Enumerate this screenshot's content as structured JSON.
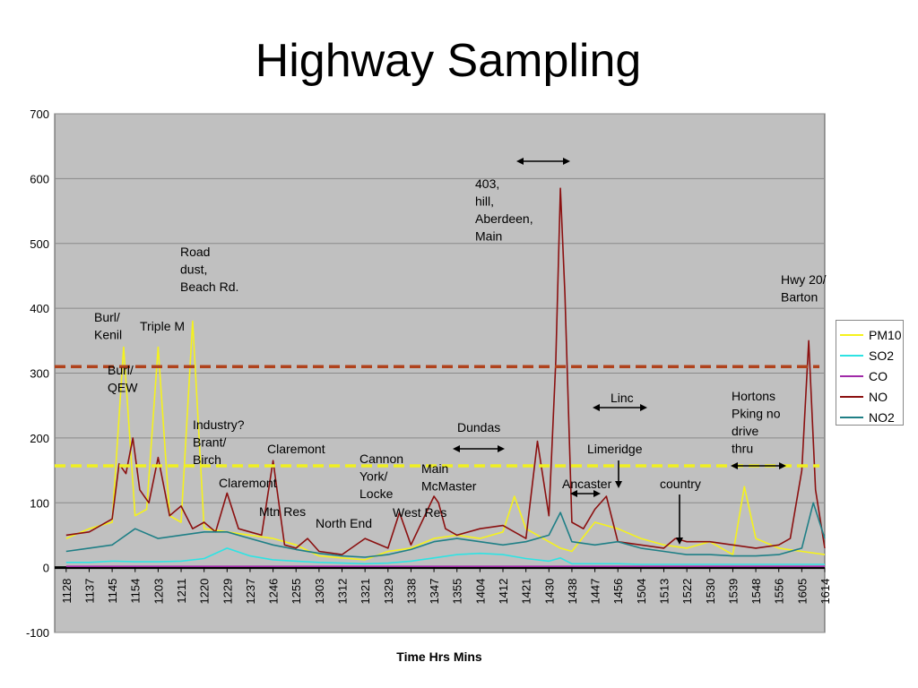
{
  "slide": {
    "title": "Highway Sampling"
  },
  "colors": {
    "PM10": "#f5f21c",
    "SO2": "#2ee3e3",
    "CO": "#a02aa8",
    "NO": "#8b1010",
    "NO2": "#1f7f86",
    "plot_bg": "#c0c0c0",
    "upper_threshold": "#b0421c",
    "lower_threshold": "#f0f020"
  },
  "chart_data": {
    "type": "line",
    "title": "",
    "xlabel": "Time Hrs Mins",
    "ylabel": "",
    "ylim": [
      -100,
      700
    ],
    "y_ticks": [
      -100,
      0,
      100,
      200,
      300,
      400,
      500,
      600,
      700
    ],
    "x_ticks": [
      "1128",
      "1137",
      "1145",
      "1154",
      "1203",
      "1211",
      "1220",
      "1229",
      "1237",
      "1246",
      "1255",
      "1303",
      "1312",
      "1321",
      "1329",
      "1338",
      "1347",
      "1355",
      "1404",
      "1412",
      "1421",
      "1430",
      "1438",
      "1447",
      "1456",
      "1504",
      "1513",
      "1522",
      "1530",
      "1539",
      "1548",
      "1556",
      "1605",
      "1614"
    ],
    "grid": "horizontal",
    "legend_position": "right",
    "reference_lines": [
      {
        "value": 310,
        "style": "dashed",
        "color": "#b0421c"
      },
      {
        "value": 157,
        "style": "dashed",
        "color": "#f0f020"
      }
    ],
    "series": [
      {
        "name": "PM10",
        "x": [
          0,
          1,
          2,
          2.5,
          3,
          3.5,
          4,
          4.5,
          5,
          5.5,
          6,
          7,
          8,
          9,
          10,
          11,
          12,
          13,
          14,
          15,
          16,
          17,
          18,
          19,
          19.5,
          20,
          21,
          21.5,
          22,
          23,
          24,
          25,
          26,
          27,
          28,
          29,
          29.5,
          30,
          31,
          32,
          33
        ],
        "values": [
          45,
          60,
          70,
          340,
          80,
          90,
          340,
          80,
          70,
          380,
          60,
          55,
          50,
          45,
          35,
          18,
          15,
          12,
          25,
          30,
          45,
          50,
          45,
          55,
          110,
          60,
          40,
          30,
          25,
          70,
          60,
          45,
          35,
          30,
          40,
          20,
          125,
          45,
          30,
          25,
          20
        ]
      },
      {
        "name": "SO2",
        "x": [
          0,
          1,
          2,
          3,
          4,
          5,
          6,
          7,
          8,
          9,
          10,
          11,
          12,
          13,
          14,
          15,
          16,
          17,
          18,
          19,
          20,
          21,
          21.5,
          22,
          23,
          24,
          25,
          26,
          27,
          28,
          29,
          30,
          31,
          32,
          33
        ],
        "values": [
          8,
          8,
          10,
          9,
          9,
          10,
          14,
          30,
          18,
          12,
          10,
          8,
          7,
          6,
          7,
          10,
          15,
          20,
          22,
          20,
          14,
          10,
          15,
          6,
          6,
          6,
          5,
          5,
          5,
          5,
          5,
          5,
          5,
          5,
          5
        ]
      },
      {
        "name": "CO",
        "x": [
          0,
          33
        ],
        "values": [
          2,
          2
        ]
      },
      {
        "name": "NO",
        "x": [
          0,
          1,
          2,
          2.3,
          2.6,
          2.9,
          3.2,
          3.6,
          4,
          4.5,
          5,
          5.5,
          6,
          6.5,
          7,
          7.5,
          8,
          8.5,
          9,
          9.5,
          10,
          10.5,
          11,
          12,
          13,
          14,
          14.5,
          15,
          16,
          16.2,
          16.5,
          17,
          18,
          19,
          20,
          20.5,
          21,
          21.3,
          21.5,
          21.7,
          22,
          22.5,
          23,
          23.5,
          24,
          25,
          26,
          26.5,
          27,
          28,
          29,
          30,
          31,
          31.5,
          32,
          32.3,
          32.6,
          33
        ],
        "values": [
          50,
          55,
          75,
          160,
          145,
          200,
          120,
          100,
          170,
          80,
          95,
          60,
          70,
          55,
          115,
          60,
          55,
          50,
          165,
          35,
          30,
          45,
          25,
          20,
          45,
          30,
          85,
          35,
          110,
          100,
          60,
          50,
          60,
          65,
          45,
          195,
          80,
          320,
          585,
          420,
          70,
          60,
          90,
          110,
          40,
          35,
          30,
          45,
          40,
          40,
          35,
          30,
          35,
          45,
          150,
          350,
          120,
          30
        ]
      },
      {
        "name": "NO2",
        "x": [
          0,
          1,
          2,
          3,
          4,
          5,
          6,
          7,
          8,
          9,
          10,
          11,
          12,
          13,
          14,
          15,
          16,
          17,
          18,
          19,
          20,
          21,
          21.5,
          22,
          23,
          24,
          25,
          26,
          27,
          28,
          29,
          30,
          31,
          32,
          32.5,
          33
        ],
        "values": [
          25,
          30,
          35,
          60,
          45,
          50,
          55,
          55,
          45,
          35,
          28,
          22,
          18,
          16,
          20,
          28,
          40,
          45,
          40,
          35,
          40,
          50,
          85,
          40,
          35,
          40,
          30,
          25,
          20,
          20,
          18,
          18,
          20,
          30,
          100,
          45
        ]
      }
    ],
    "annotations": [
      {
        "text": "403, hill, Aberdeen, Main",
        "arrow": true
      },
      {
        "text": "Road dust, Beach Rd."
      },
      {
        "text": "Burl/ Kenil"
      },
      {
        "text": "Triple M"
      },
      {
        "text": "Burl/ QEW"
      },
      {
        "text": "Hwy 20/ Barton"
      },
      {
        "text": "Linc",
        "arrow": true
      },
      {
        "text": "Hortons Pking no drive thru",
        "arrow": true
      },
      {
        "text": "Dundas",
        "arrow": true
      },
      {
        "text": "Industry? Brant/ Birch"
      },
      {
        "text": "Claremont"
      },
      {
        "text": "Claremont"
      },
      {
        "text": "Cannon York/ Locke"
      },
      {
        "text": "Main McMaster"
      },
      {
        "text": "Limeridge",
        "arrow": true
      },
      {
        "text": "Ancaster",
        "arrow": true
      },
      {
        "text": "country",
        "arrow": true
      },
      {
        "text": "Mtn Res"
      },
      {
        "text": "North End"
      },
      {
        "text": "West Res"
      }
    ]
  }
}
